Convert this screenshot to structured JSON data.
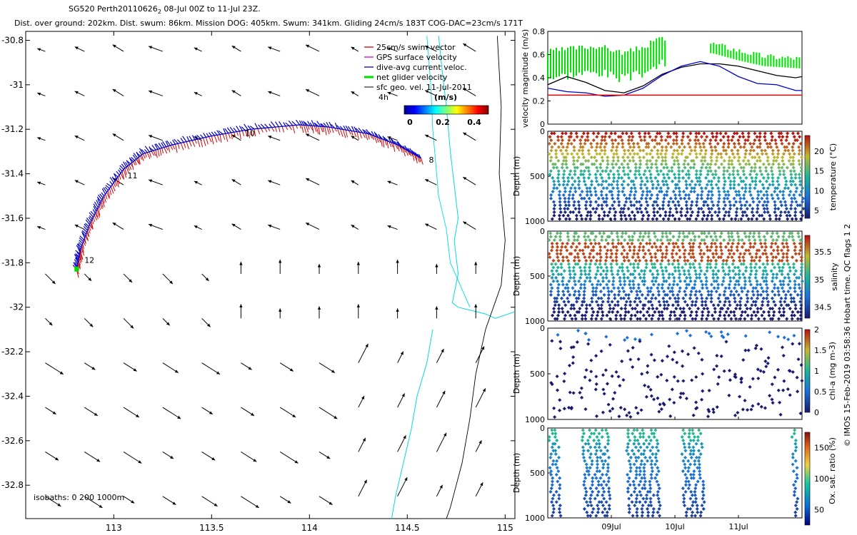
{
  "header": {
    "title": "SG520 Perth20110626",
    "title_sub": "2",
    "title_rest": " 08-Jul 00Z to 11-Jul 23Z.",
    "stats": "Dist. over ground: 202km. Dist. swum: 86km. Mission DOG: 405km. Swum: 341km. Gliding 24cm/s 183T COG-DAC=23cm/s 171T"
  },
  "side_text": "© IMOS 15-Feb-2019 03:58:36 Hobart time. QC flags 1  2",
  "colors": {
    "swim_vector": "#d40000",
    "gps_velocity": "#cc00cc",
    "dive_avg_current": "#0000cc",
    "net_glider": "#00dd00",
    "sfc_geo": "#000000",
    "coastline": "#00dddd",
    "isobath": "#000000",
    "ref_line": "#ee0000"
  },
  "chart_data": [
    {
      "type": "map",
      "id": "track-map",
      "xlim": [
        112.55,
        115.05
      ],
      "ylim": [
        -32.95,
        -30.76
      ],
      "xticks": [
        113,
        113.5,
        114,
        114.5,
        115
      ],
      "xtick_labels": [
        "113",
        "113.5",
        "114",
        "114.5",
        "115"
      ],
      "yticks": [
        -30.8,
        -31,
        -31.2,
        -31.4,
        -31.6,
        -31.8,
        -32,
        -32.2,
        -32.4,
        -32.6,
        -32.8
      ],
      "ytick_labels": [
        "-30.8",
        "-31",
        "-31.2",
        "-31.4",
        "-31.6",
        "-31.8",
        "-32",
        "-32.2",
        "-32.4",
        "-32.6",
        "-32.8"
      ],
      "legend": {
        "placement": "top-right",
        "entries": [
          "25cm/s swim vector",
          "GPS surface velocity",
          "dive-avg current veloc.",
          "net glider velocity",
          "sfc geo. vel. 11-Jul-2011"
        ],
        "extra_label": "4h"
      },
      "colorbar": {
        "label": "(m/s)",
        "ticks": [
          "0",
          "0.2",
          "0.4"
        ],
        "range": [
          0,
          0.5
        ]
      },
      "isobaths_label": "isobaths: 0   200  1000m",
      "track": [
        [
          114.57,
          -31.33
        ],
        [
          114.45,
          -31.27
        ],
        [
          114.3,
          -31.22
        ],
        [
          114.1,
          -31.19
        ],
        [
          113.95,
          -31.18
        ],
        [
          113.7,
          -31.2
        ],
        [
          113.5,
          -31.23
        ],
        [
          113.3,
          -31.27
        ],
        [
          113.15,
          -31.31
        ],
        [
          113.05,
          -31.38
        ],
        [
          112.95,
          -31.5
        ],
        [
          112.88,
          -31.62
        ],
        [
          112.83,
          -31.74
        ],
        [
          112.81,
          -31.83
        ]
      ],
      "day_labels": [
        {
          "label": "8",
          "lon": 114.61,
          "lat": -31.35
        },
        {
          "label": "10",
          "lon": 113.67,
          "lat": -31.23
        },
        {
          "label": "11",
          "lon": 113.07,
          "lat": -31.42
        },
        {
          "label": "12",
          "lon": 112.85,
          "lat": -31.8
        }
      ],
      "geo_vector_field": {
        "lons": [
          112.65,
          112.85,
          113.05,
          113.25,
          113.45,
          113.65,
          113.85,
          114.05,
          114.25,
          114.45,
          114.65,
          114.85
        ],
        "lats": [
          -30.85,
          -31.05,
          -31.25,
          -31.45,
          -31.65,
          -31.85,
          -32.05,
          -32.25,
          -32.45,
          -32.65,
          -32.85
        ],
        "units": "m/s"
      }
    },
    {
      "type": "line",
      "id": "velocity-panel",
      "ylabel": "velocity magnitude (m/s)",
      "ylim": [
        0,
        0.8
      ],
      "yticks": [
        "0",
        "0.2",
        "0.4",
        "0.6",
        "0.8"
      ],
      "x_days": [
        8.0,
        12.0
      ],
      "series": [
        {
          "color": "#000000",
          "x": [
            8.0,
            8.3,
            8.6,
            8.9,
            9.2,
            9.5,
            9.8,
            10.1,
            10.4,
            10.7,
            11.0,
            11.3,
            11.6,
            11.9,
            12.0
          ],
          "y": [
            0.34,
            0.41,
            0.36,
            0.29,
            0.27,
            0.33,
            0.43,
            0.49,
            0.52,
            0.52,
            0.5,
            0.46,
            0.42,
            0.4,
            0.41
          ]
        },
        {
          "color": "#0000cc",
          "x": [
            8.0,
            8.3,
            8.6,
            8.9,
            9.2,
            9.5,
            9.8,
            10.1,
            10.4,
            10.7,
            11.0,
            11.3,
            11.6,
            11.9,
            12.0
          ],
          "y": [
            0.31,
            0.28,
            0.27,
            0.24,
            0.25,
            0.31,
            0.42,
            0.5,
            0.54,
            0.5,
            0.41,
            0.35,
            0.34,
            0.29,
            0.29
          ]
        },
        {
          "color": "#00dd00",
          "x": [
            8.0,
            8.4,
            8.8,
            9.2,
            9.5,
            9.8,
            10.6,
            11.0,
            11.4,
            12.0
          ],
          "y": [
            0.56,
            0.59,
            0.61,
            0.55,
            0.6,
            0.68,
            0.63,
            0.57,
            0.52,
            0.5
          ]
        },
        {
          "color": "#ee0000",
          "x": [
            8.0,
            12.0
          ],
          "y": [
            0.25,
            0.25
          ]
        }
      ]
    },
    {
      "type": "scatter",
      "id": "temperature-panel",
      "ylabel": "Depth (m)",
      "ylim": [
        1000,
        0
      ],
      "yticks": [
        "0",
        "500",
        "1000"
      ],
      "colorbar": {
        "label": "temperature (°C)",
        "ticks": [
          "5",
          "10",
          "15",
          "20"
        ],
        "range": [
          3,
          24
        ]
      }
    },
    {
      "type": "scatter",
      "id": "salinity-panel",
      "ylabel": "Depth (m)",
      "ylim": [
        1000,
        0
      ],
      "yticks": [
        "0",
        "500",
        "1000"
      ],
      "colorbar": {
        "label": "salinity",
        "ticks": [
          "34.5",
          "35",
          "35.5"
        ],
        "range": [
          34.3,
          35.8
        ]
      }
    },
    {
      "type": "scatter",
      "id": "chla-panel",
      "ylabel": "Depth (m)",
      "ylim": [
        1000,
        0
      ],
      "yticks": [
        "0",
        "500",
        "1000"
      ],
      "colorbar": {
        "label": "chl-a (mg m-3)",
        "ticks": [
          "0",
          "0.5",
          "1",
          "1.5",
          "2"
        ],
        "range": [
          0,
          2
        ]
      }
    },
    {
      "type": "scatter",
      "id": "oxygen-panel",
      "ylabel": "Depth (m)",
      "ylim": [
        1000,
        0
      ],
      "yticks": [
        "0",
        "500",
        "1000"
      ],
      "xticks_days": [
        9,
        10,
        11
      ],
      "xtick_labels": [
        "09Jul",
        "10Jul",
        "11Jul"
      ],
      "colorbar": {
        "label": "Ox. sat. ratio (%)",
        "ticks": [
          "50",
          "100",
          "150"
        ],
        "range": [
          25,
          175
        ]
      }
    }
  ]
}
